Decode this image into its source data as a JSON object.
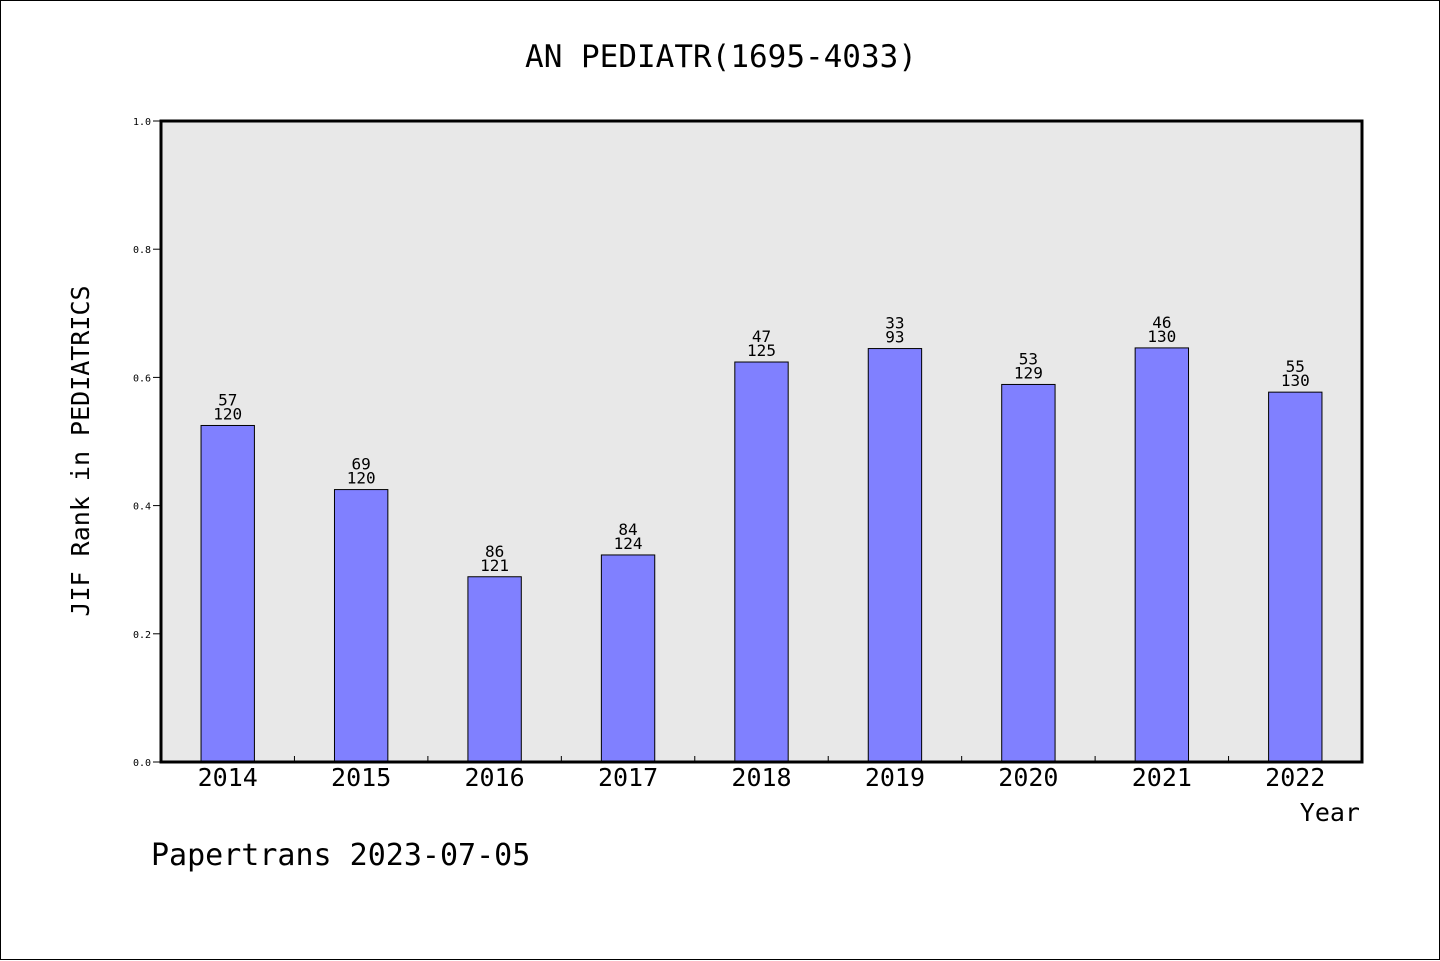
{
  "chart_data": {
    "type": "bar",
    "title": "AN PEDIATR(1695-4033)",
    "xlabel": "Year",
    "ylabel": "JIF Rank in PEDIATRICS",
    "ylim": [
      0,
      1.0
    ],
    "yticks": [
      "0.0",
      "0.2",
      "0.4",
      "0.6",
      "0.8",
      "1.0"
    ],
    "categories": [
      "2014",
      "2015",
      "2016",
      "2017",
      "2018",
      "2019",
      "2020",
      "2021",
      "2022"
    ],
    "values": [
      0.525,
      0.425,
      0.289,
      0.323,
      0.624,
      0.645,
      0.589,
      0.646,
      0.577
    ],
    "rank": [
      "57",
      "69",
      "86",
      "84",
      "47",
      "33",
      "53",
      "46",
      "55"
    ],
    "total": [
      "120",
      "120",
      "121",
      "124",
      "125",
      "93",
      "129",
      "130",
      "130"
    ],
    "bar_color": "#8080ff",
    "plot_background": "#e8e8e8",
    "grid": false
  },
  "footer": "Papertrans 2023-07-05"
}
